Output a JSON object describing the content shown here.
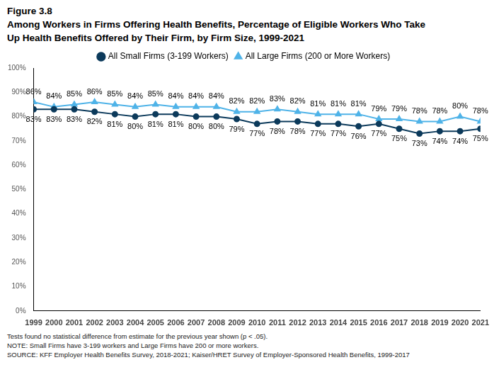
{
  "chart_data": {
    "type": "line",
    "title": "Figure 3.8",
    "subtitle": [
      "Among Workers in Firms Offering Health Benefits, Percentage of Eligible Workers Who Take",
      "Up Health Benefits Offered by Their Firm, by Firm Size, 1999-2021"
    ],
    "annotations": [
      "Tests found no statistical difference from estimate for the previous year shown (p < .05).",
      "NOTE: Small Firms have 3-199 workers and Large Firms have 200 or more workers.",
      "SOURCE: KFF Employer Health Benefits Survey, 2018-2021; Kaiser/HRET Survey of Employer-Sponsored Health Benefits, 1999-2017"
    ],
    "categories": [
      "1999",
      "2000",
      "2001",
      "2002",
      "2003",
      "2004",
      "2005",
      "2006",
      "2007",
      "2008",
      "2009",
      "2010",
      "2011",
      "2012",
      "2013",
      "2014",
      "2015",
      "2016",
      "2017",
      "2018",
      "2019",
      "2020",
      "2021"
    ],
    "series": [
      {
        "name": "All Small Firms (3-199 Workers)",
        "color": "#0c3a5b",
        "marker": "circle",
        "values": [
          83,
          83,
          83,
          82,
          81,
          80,
          81,
          81,
          80,
          80,
          79,
          77,
          78,
          78,
          77,
          77,
          76,
          77,
          75,
          73,
          74,
          74,
          75
        ],
        "value_labels": [
          "83%",
          "83%",
          "83%",
          "82%",
          "81%",
          "80%",
          "81%",
          "81%",
          "80%",
          "80%",
          "79%",
          "77%",
          "78%",
          "78%",
          "77%",
          "77%",
          "76%",
          "77%",
          "75%",
          "73%",
          "74%",
          "74%",
          "75%"
        ]
      },
      {
        "name": "All Large Firms (200 or More Workers)",
        "color": "#4fb3e8",
        "marker": "triangle",
        "values": [
          86,
          84,
          85,
          86,
          85,
          84,
          85,
          84,
          84,
          84,
          82,
          82,
          83,
          82,
          81,
          81,
          81,
          79,
          79,
          78,
          78,
          80,
          78
        ],
        "value_labels": [
          "86%",
          "84%",
          "85%",
          "86%",
          "85%",
          "84%",
          "85%",
          "84%",
          "84%",
          "84%",
          "82%",
          "82%",
          "83%",
          "82%",
          "81%",
          "81%",
          "81%",
          "79%",
          "79%",
          "78%",
          "78%",
          "80%",
          "78%"
        ]
      }
    ],
    "ylim": [
      0,
      100
    ],
    "yticks": [
      {
        "value": 0,
        "label": "0%"
      },
      {
        "value": 10,
        "label": "10%"
      },
      {
        "value": 20,
        "label": "20%"
      },
      {
        "value": 30,
        "label": "30%"
      },
      {
        "value": 40,
        "label": "40%"
      },
      {
        "value": 50,
        "label": "50%"
      },
      {
        "value": 60,
        "label": "60%"
      },
      {
        "value": 70,
        "label": "70%"
      },
      {
        "value": 80,
        "label": "80%"
      },
      {
        "value": 90,
        "label": "90%"
      },
      {
        "value": 100,
        "label": "100%"
      }
    ],
    "grid": false,
    "legend": "top",
    "data_labels": true
  }
}
